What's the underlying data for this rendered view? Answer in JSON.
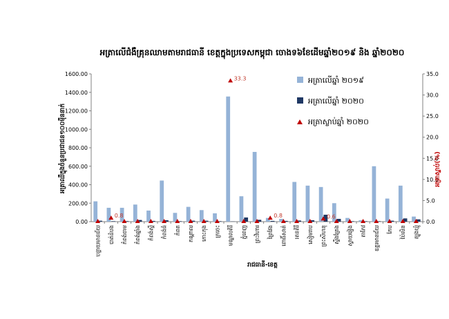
{
  "chart_data": {
    "type": "bar",
    "title": "អត្រាលើជំងឺគ្រុនឈាមតាមរាជធានី ខេត្តក្នុងប្រទេសកម្ពុជា ចោងទ៦ខែដើមឆ្នាំ២០១៩ និង ឆ្នាំ២០២០",
    "xlabel": "រាជធានី-ខេត្ត",
    "ylabel": "អត្រាឈឺក្នុងចំនួនប្រជាជន១០០ម៉ឺននាក់",
    "y2label": "អត្រាស្លាប់(%)",
    "ylim": [
      0,
      1600
    ],
    "y2lim": [
      0,
      35
    ],
    "yticks": [
      "0.00",
      "200.00",
      "400.00",
      "600.00",
      "800.00",
      "1000.00",
      "1200.00",
      "1400.00",
      "1600.00"
    ],
    "y2ticks": [
      "0.0",
      "5.0",
      "10.0",
      "15.0",
      "20.0",
      "25.0",
      "30.0",
      "35.0"
    ],
    "categories": [
      "បន្ទាយមានជ័យ",
      "បាត់ដំបង",
      "កំពង់ចាម",
      "កំពង់ឆ្នាំង",
      "កំពង់ស្ពឺ",
      "កំពង់ធំ",
      "កំពត",
      "កណ្ដាល",
      "កោះកុង",
      "ក្រចេះ",
      "មណ្ឌលគិរី",
      "ភ្នំពេញ",
      "ព្រះវិហារ",
      "ព្រៃវែង",
      "ពោធិ៍សាត់",
      "រតនគិរី",
      "សៀមរាប",
      "ព្រះសីហនុ",
      "ស្ទឹងត្រែង",
      "ស្វាយរៀង",
      "តាកែវ",
      "ឧត្ដរមានជ័យ",
      "កែប",
      "ប៉ៃលិន",
      "ត្បូងឃ្មុំ"
    ],
    "series": [
      {
        "name": "អត្រាលើឆ្នាំ ២០១៩",
        "axis": "left",
        "color": "#95b3d7",
        "values": [
          220,
          150,
          150,
          185,
          120,
          445,
          95,
          160,
          125,
          90,
          1355,
          275,
          755,
          40,
          30,
          430,
          390,
          375,
          200,
          40,
          15,
          600,
          250,
          390,
          55
        ]
      },
      {
        "name": "អត្រាលើឆ្នាំ ២០២០",
        "axis": "left",
        "color": "#1f3864",
        "values": [
          10,
          5,
          6,
          18,
          8,
          15,
          5,
          10,
          10,
          5,
          2,
          45,
          20,
          8,
          8,
          12,
          15,
          75,
          30,
          5,
          5,
          5,
          10,
          35,
          25
        ]
      },
      {
        "name": "អត្រាស្លាប់ឆ្នាំ ២០២០",
        "axis": "right",
        "color": "#c00000",
        "values": [
          0,
          0.8,
          0,
          0,
          0,
          0,
          0,
          0,
          0,
          0,
          33.3,
          0,
          0,
          0.8,
          0,
          0,
          0,
          0.6,
          0,
          0,
          0,
          0,
          0,
          0,
          0
        ]
      }
    ],
    "data_labels": [
      {
        "category_index": 1,
        "text": "0.8"
      },
      {
        "category_index": 10,
        "text": "33.3"
      },
      {
        "category_index": 13,
        "text": "0.8"
      },
      {
        "category_index": 17,
        "text": "0.6"
      }
    ],
    "legend_position": "top-right",
    "grid": false
  }
}
